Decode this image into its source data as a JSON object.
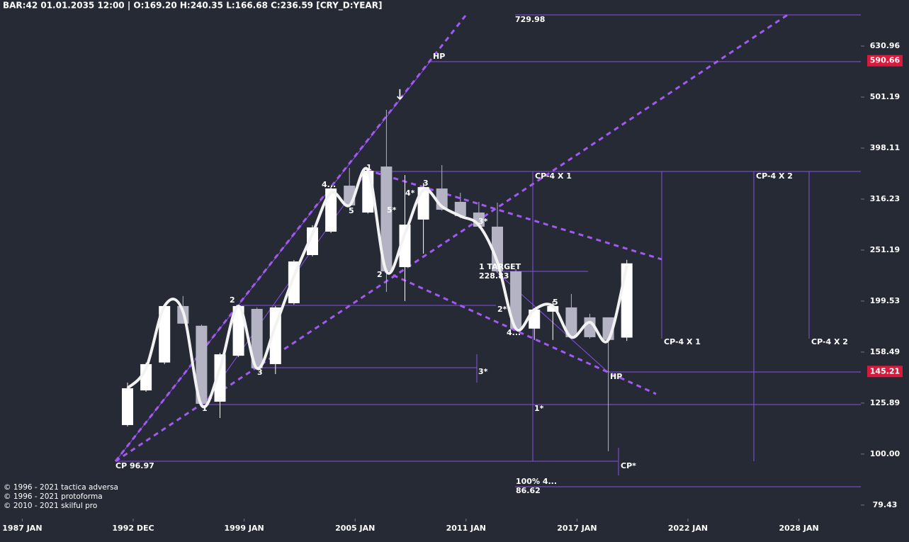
{
  "chart_data": {
    "type": "candlestick",
    "header": "BAR:42 01.01.2035 12:00 | O:169.20 H:240.35 L:166.68 C:236.59  [CRY_D:YEAR]",
    "log": true,
    "ylim": [
      75.2,
      776.9
    ],
    "yticks": [
      630.96,
      501.19,
      398.11,
      316.23,
      251.19,
      199.53,
      158.49,
      125.89,
      {
        "value": 100,
        "label": "100.00"
      },
      79.43
    ],
    "xticks": [
      {
        "value": -6,
        "label": "1987 JAN"
      },
      {
        "value": 0,
        "label": "1992 DEC"
      },
      {
        "value": 6,
        "label": "1999 JAN"
      },
      {
        "value": 12,
        "label": "2005 JAN"
      },
      {
        "value": 18,
        "label": "2011 JAN"
      },
      {
        "value": 24,
        "label": "2017 JAN"
      },
      {
        "value": 30,
        "label": "2022 JAN"
      },
      {
        "value": 36,
        "label": "2028 JAN"
      }
    ],
    "up_color": "#ffffff",
    "down_color": "#b3b3c4",
    "curve_color": "#f2f2f2",
    "open": [
      114.0,
      133.3,
      151.2,
      195.1,
      178.5,
      126.7,
      155.9,
      192.6,
      150.1,
      197.6,
      245.6,
      273.0,
      336.0,
      297.6,
      366.3,
      232.6,
      288.3,
      331.7,
      312.3,
      297.6,
      279.2,
      228.2,
      176.2,
      190.2,
      193.9,
      185.4,
      185.4,
      169.2
    ],
    "high": [
      138.1,
      151.2,
      196.4,
      204.1,
      179.4,
      157.9,
      196.4,
      193.9,
      195.1,
      240.1,
      281.0,
      333.8,
      364.0,
      360.4,
      473.2,
      352.5,
      340.4,
      368.6,
      325.4,
      312.3,
      311.2,
      230.4,
      193.2,
      199.5,
      206.0,
      188.4,
      185.4,
      240.35
    ],
    "low": [
      113.3,
      132.5,
      150.1,
      180.2,
      124.7,
      117.7,
      155.0,
      146.4,
      143.5,
      196.4,
      244.1,
      271.4,
      305.8,
      296.2,
      208.0,
      199.5,
      247.2,
      299.9,
      290.3,
      277.4,
      226.7,
      175.1,
      167.4,
      167.4,
      168.4,
      168.4,
      101.3,
      166.68
    ],
    "close": [
      134.6,
      150.1,
      195.1,
      180.2,
      125.5,
      156.9,
      195.1,
      147.3,
      193.9,
      238.6,
      278.3,
      331.7,
      307.3,
      359.3,
      228.2,
      281.8,
      333.8,
      301.4,
      292.9,
      279.2,
      228.2,
      176.2,
      192.0,
      195.1,
      169.5,
      169.5,
      167.4,
      236.59
    ],
    "curve": [
      134.6,
      147.3,
      195.1,
      190.2,
      124.7,
      147.3,
      195.1,
      147.3,
      178.5,
      223.2,
      270.4,
      325.4,
      307.3,
      360.4,
      228.2,
      270.4,
      329.6,
      305.8,
      292.9,
      281.0,
      237.9,
      176.2,
      192.0,
      195.1,
      169.5,
      181.3,
      167.4,
      234.2
    ],
    "price_tags": [
      590.66,
      145.21
    ],
    "price_tag_color": "#d81b3c",
    "annotations": [
      "729.98",
      "HP",
      "↓",
      "CP-4 X 1",
      "CP-4 X 2",
      "1",
      "4...",
      "3",
      "4*",
      "5",
      "5*",
      "3*",
      "2",
      "1 TARGET",
      "228.83",
      "2",
      "2*",
      "5",
      "4...",
      "3",
      "3*",
      "1",
      "1*",
      "HP",
      "CP-4 X 1",
      "CP-4 X 2",
      "CP 96.97",
      "CP*",
      "100%  4...",
      "86.62"
    ],
    "copyright": [
      "© 1996 - 2021 tactica adversa",
      "© 1996 - 2021 protoforma",
      "© 2010 - 2021 skilful pro"
    ]
  }
}
